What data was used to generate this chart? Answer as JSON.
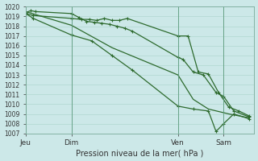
{
  "xlabel": "Pression niveau de la mer( hPa )",
  "ylim": [
    1007,
    1020
  ],
  "xlim": [
    0,
    90
  ],
  "yticks": [
    1007,
    1008,
    1009,
    1010,
    1011,
    1012,
    1013,
    1014,
    1015,
    1016,
    1017,
    1018,
    1019,
    1020
  ],
  "xtick_positions": [
    0,
    18,
    60,
    78
  ],
  "xtick_labels": [
    "Jeu",
    "Dim",
    "Ven",
    "Sam"
  ],
  "bg_color": "#cce8e8",
  "line_color": "#2d6a2d",
  "grid_color": "#b0d8d0",
  "series1_x": [
    0,
    2,
    4,
    18,
    21,
    24,
    27,
    30,
    33,
    36,
    39,
    42,
    60,
    62,
    66,
    70,
    75,
    78,
    82,
    88
  ],
  "series1_y": [
    1019.4,
    1019.6,
    1019.5,
    1019.3,
    1018.9,
    1018.5,
    1018.4,
    1018.3,
    1018.2,
    1018.0,
    1017.8,
    1017.5,
    1014.8,
    1014.6,
    1013.3,
    1013.0,
    1011.2,
    1010.8,
    1009.3,
    1008.7
  ],
  "series2_x": [
    0,
    3,
    18,
    22,
    25,
    28,
    31,
    34,
    37,
    40,
    60,
    64,
    68,
    72,
    76,
    80,
    84,
    88
  ],
  "series2_y": [
    1019.3,
    1019.1,
    1018.8,
    1018.7,
    1018.7,
    1018.6,
    1018.8,
    1018.6,
    1018.6,
    1018.8,
    1017.0,
    1017.0,
    1013.3,
    1013.1,
    1011.2,
    1009.7,
    1009.3,
    1008.8
  ],
  "series3_x": [
    0,
    3,
    18,
    26,
    34,
    42,
    60,
    66,
    72,
    75,
    78,
    82,
    88
  ],
  "series3_y": [
    1019.3,
    1018.8,
    1017.1,
    1016.5,
    1015.0,
    1013.5,
    1009.8,
    1009.5,
    1009.3,
    1007.2,
    1008.0,
    1009.0,
    1008.5
  ],
  "series4_x": [
    0,
    18,
    34,
    60,
    66,
    72,
    80,
    88
  ],
  "series4_y": [
    1019.5,
    1018.1,
    1015.8,
    1013.0,
    1010.5,
    1009.5,
    1009.0,
    1008.6
  ]
}
